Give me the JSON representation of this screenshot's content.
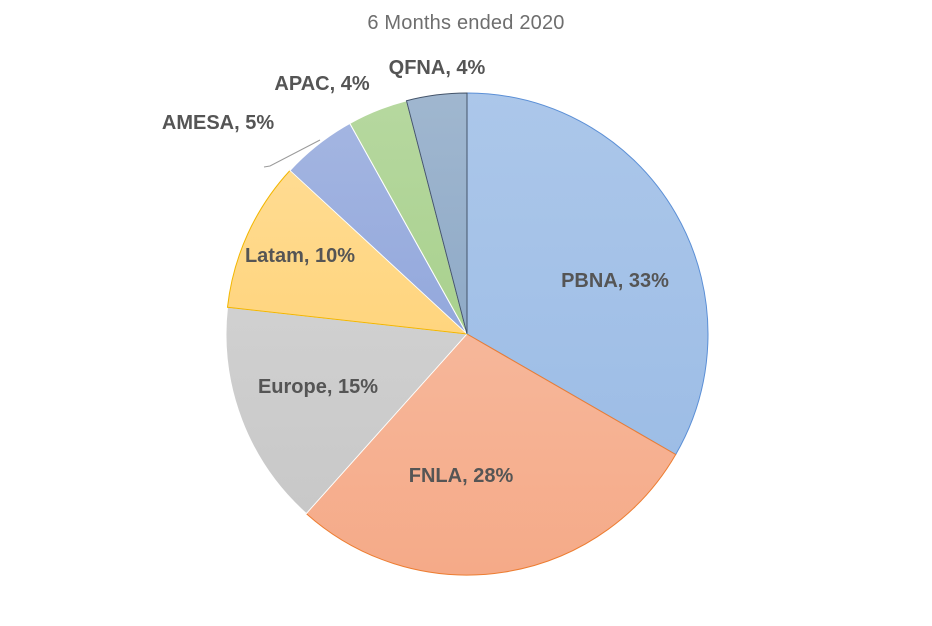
{
  "chart_data": {
    "type": "pie",
    "title": "6 Months ended 2020",
    "slices": [
      {
        "name": "PBNA",
        "value": 33,
        "label": "PBNA, 33%",
        "fill": "#9dbde6",
        "stroke": "#5b8fd6"
      },
      {
        "name": "FNLA",
        "value": 28,
        "label": "FNLA, 28%",
        "fill": "#f5aa88",
        "stroke": "#ed7d31"
      },
      {
        "name": "Europe",
        "value": 15,
        "label": "Europe, 15%",
        "fill": "#c8c8c8",
        "stroke": "#ffffff"
      },
      {
        "name": "Latam",
        "value": 10,
        "label": "Latam, 10%",
        "fill": "#ffd57e",
        "stroke": "#f2b600"
      },
      {
        "name": "AMESA",
        "value": 5,
        "label": "AMESA, 5%",
        "fill": "#93a8dc",
        "stroke": "#ffffff"
      },
      {
        "name": "APAC",
        "value": 4,
        "label": "APAC, 4%",
        "fill": "#a9d18e",
        "stroke": "#ffffff"
      },
      {
        "name": "QFNA",
        "value": 4,
        "label": "QFNA, 4%",
        "fill": "#8faac7",
        "stroke": "#44546a"
      }
    ]
  }
}
